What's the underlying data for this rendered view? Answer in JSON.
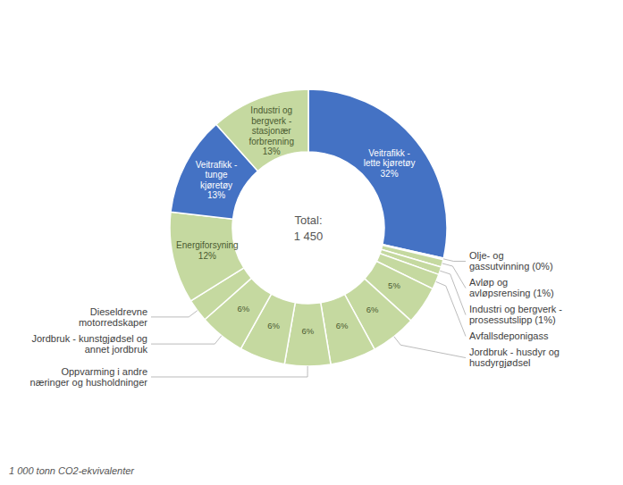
{
  "chart_data": {
    "type": "pie",
    "categories": [
      null,
      "Olje- og\ngassutvinning (0%)",
      "Avløp og\navløpsrensing (1%)",
      "Industri og bergverk -\nprosessutslipp (1%)",
      "Avfallsdeponigass",
      null,
      "Jordbruk - husdyr og\nhusdyrgjødsel",
      null,
      "Oppvarming i andre\nnæringer og husholdninger",
      null,
      "Jordbruk - kunstgjødsel og\nannet jordbruk",
      "Dieseldrevne\nmotorredskaper",
      null,
      null,
      null
    ],
    "values": [
      32,
      0.2,
      1.0,
      1.0,
      2.0,
      5,
      6,
      6,
      6,
      6,
      6,
      3,
      12,
      13,
      13
    ],
    "value_labels": [
      "Veitrafikk -\nlette kjøretøy\n32%",
      null,
      null,
      null,
      null,
      "5%",
      "6%",
      "6%",
      "6%",
      "6%",
      "6%",
      null,
      "Energiforsyning\n12%",
      "Veitrafikk -\ntunge\nkjøretøy\n13%",
      "Industri og\nbergverk -\nstasjonær\nforbrenning\n13%"
    ],
    "colors": [
      "#4472C4",
      "#c5d9a0",
      "#c5d9a0",
      "#c5d9a0",
      "#c5d9a0",
      "#c5d9a0",
      "#c5d9a0",
      "#c5d9a0",
      "#c5d9a0",
      "#c5d9a0",
      "#c5d9a0",
      "#c5d9a0",
      "#c5d9a0",
      "#4472C4",
      "#c5d9a0"
    ],
    "data_labels": true,
    "annotations": [
      "Total:",
      "1 450"
    ],
    "footnote": "1 000 tonn CO2-ekvivalenter"
  }
}
